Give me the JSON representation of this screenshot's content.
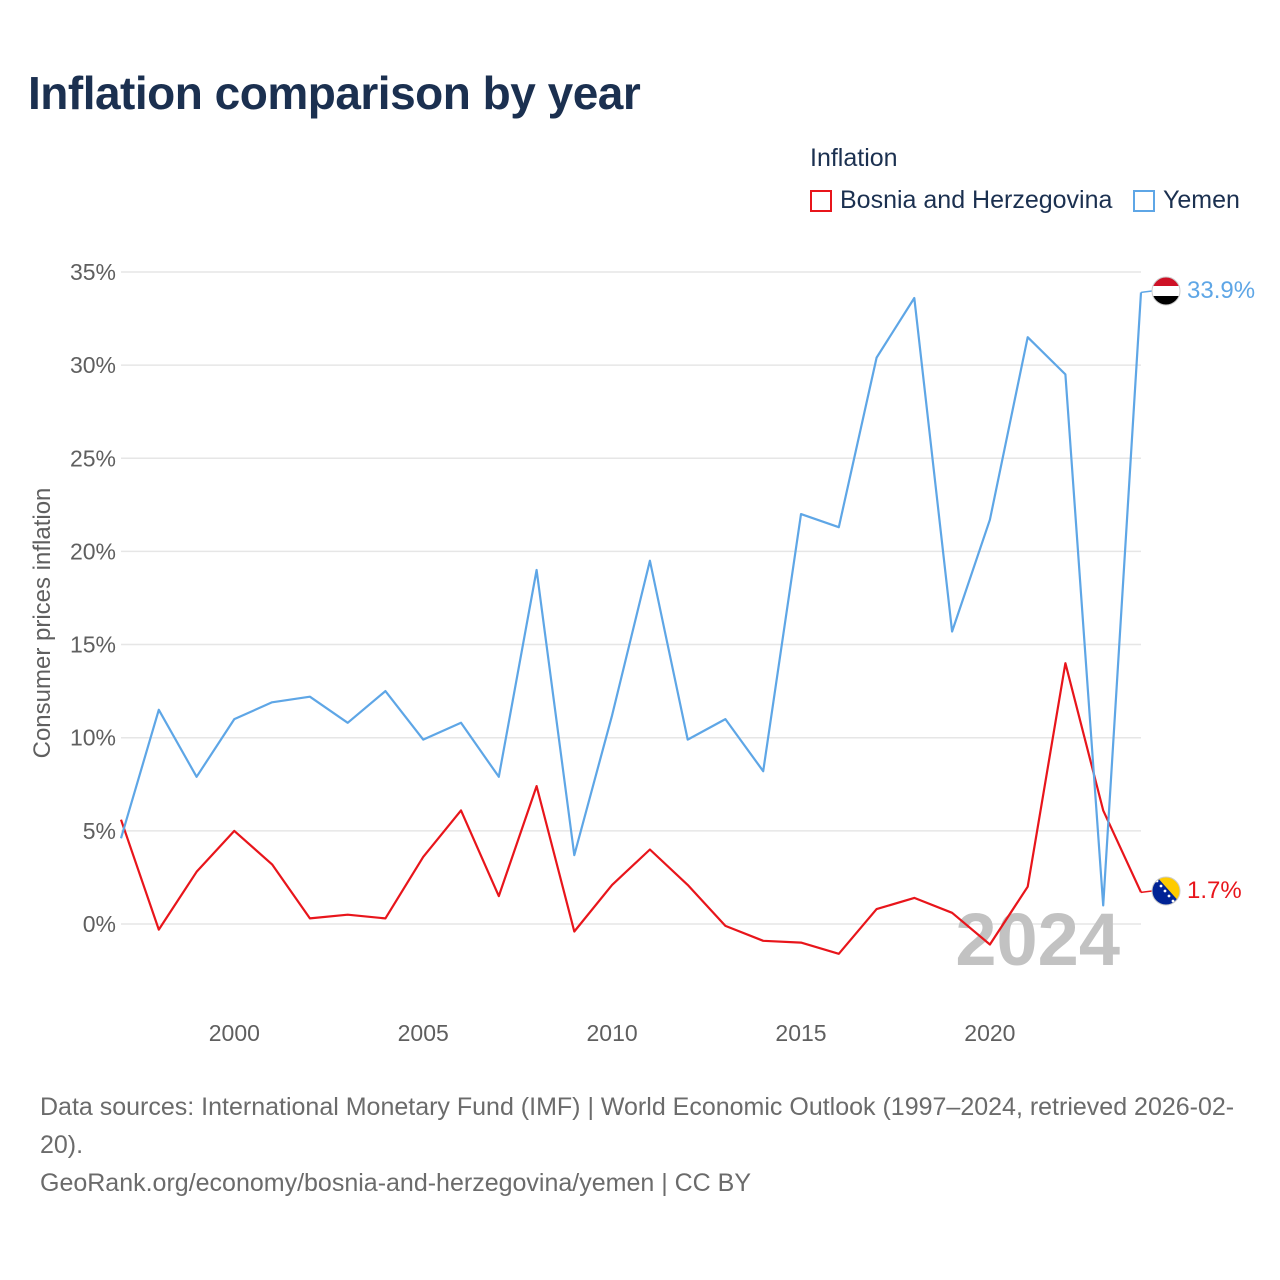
{
  "title": "Inflation comparison by year",
  "legend": {
    "title": "Inflation",
    "items": [
      {
        "label": "Bosnia and Herzegovina",
        "color": "#e8151b"
      },
      {
        "label": "Yemen",
        "color": "#5ea6e6"
      }
    ]
  },
  "footer": {
    "sources": "Data sources: International Monetary Fund (IMF) | World Economic Outlook (1997–2024, retrieved 2026-02-20).",
    "url": "GeoRank.org/economy/bosnia-and-herzegovina/yemen | CC BY"
  },
  "chart_data": {
    "type": "line",
    "title": "Inflation comparison by year",
    "ylabel": "Consumer prices inflation",
    "xlabel": "",
    "year_watermark": "2024",
    "x": [
      1997,
      1998,
      1999,
      2000,
      2001,
      2002,
      2003,
      2004,
      2005,
      2006,
      2007,
      2008,
      2009,
      2010,
      2011,
      2012,
      2013,
      2014,
      2015,
      2016,
      2017,
      2018,
      2019,
      2020,
      2021,
      2022,
      2023,
      2024
    ],
    "xlim": [
      1997,
      2024
    ],
    "ylim": [
      -5,
      35
    ],
    "yticks": [
      0,
      5,
      10,
      15,
      20,
      25,
      30,
      35
    ],
    "ytick_labels": [
      "0%",
      "5%",
      "10%",
      "15%",
      "20%",
      "25%",
      "30%",
      "35%"
    ],
    "xticks": [
      2000,
      2005,
      2010,
      2015,
      2020
    ],
    "xtick_labels": [
      "2000",
      "2005",
      "2010",
      "2015",
      "2020"
    ],
    "series": [
      {
        "name": "Bosnia and Herzegovina",
        "color": "#e8151b",
        "values": [
          5.6,
          -0.3,
          2.8,
          5.0,
          3.2,
          0.3,
          0.5,
          0.3,
          3.6,
          6.1,
          1.5,
          7.4,
          -0.4,
          2.1,
          4.0,
          2.1,
          -0.1,
          -0.9,
          -1.0,
          -1.6,
          0.8,
          1.4,
          0.6,
          -1.1,
          2.0,
          14.0,
          6.1,
          1.7
        ],
        "end_label": "1.7%"
      },
      {
        "name": "Yemen",
        "color": "#5ea6e6",
        "values": [
          4.6,
          11.5,
          7.9,
          11.0,
          11.9,
          12.2,
          10.8,
          12.5,
          9.9,
          10.8,
          7.9,
          19.0,
          3.7,
          11.2,
          19.5,
          9.9,
          11.0,
          8.2,
          22.0,
          21.3,
          30.4,
          33.6,
          15.7,
          21.7,
          31.5,
          29.5,
          1.0,
          33.9
        ],
        "end_label": "33.9%"
      }
    ]
  }
}
